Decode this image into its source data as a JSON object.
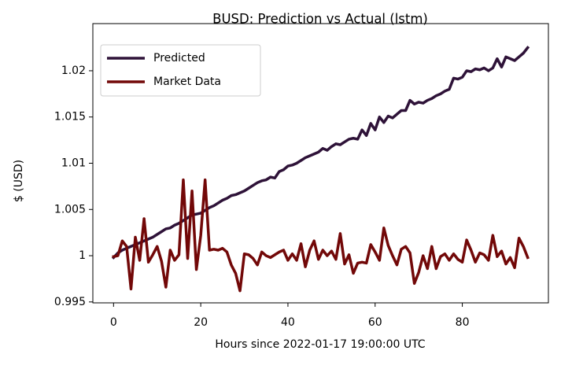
{
  "chart_data": {
    "type": "line",
    "title": "BUSD: Prediction vs Actual (lstm)",
    "x_label": "Hours since 2022-01-17 19:00:00 UTC",
    "y_label": "$ (USD)",
    "x": [
      0,
      1,
      2,
      3,
      4,
      5,
      6,
      7,
      8,
      9,
      10,
      11,
      12,
      13,
      14,
      15,
      16,
      17,
      18,
      19,
      20,
      21,
      22,
      23,
      24,
      25,
      26,
      27,
      28,
      29,
      30,
      31,
      32,
      33,
      34,
      35,
      36,
      37,
      38,
      39,
      40,
      41,
      42,
      43,
      44,
      45,
      46,
      47,
      48,
      49,
      50,
      51,
      52,
      53,
      54,
      55,
      56,
      57,
      58,
      59,
      60,
      61,
      62,
      63,
      64,
      65,
      66,
      67,
      68,
      69,
      70,
      71,
      72,
      73,
      74,
      75,
      76,
      77,
      78,
      79,
      80,
      81,
      82,
      83,
      84,
      85,
      86,
      87,
      88,
      89,
      90,
      91,
      92,
      93,
      94,
      95
    ],
    "series": [
      {
        "name": "Predicted",
        "color": "#2e1238",
        "values": [
          0.9998,
          1.0003,
          1.0006,
          1.0008,
          1.001,
          1.0012,
          1.0014,
          1.0016,
          1.0018,
          1.002,
          1.0023,
          1.0026,
          1.0029,
          1.003,
          1.0033,
          1.0035,
          1.0038,
          1.0041,
          1.0044,
          1.0045,
          1.0046,
          1.0049,
          1.0052,
          1.0054,
          1.0057,
          1.006,
          1.0062,
          1.0065,
          1.0066,
          1.0068,
          1.007,
          1.0073,
          1.0076,
          1.0079,
          1.0081,
          1.0082,
          1.0085,
          1.0084,
          1.0091,
          1.0093,
          1.0097,
          1.0098,
          1.01,
          1.0103,
          1.0106,
          1.0108,
          1.011,
          1.0112,
          1.0116,
          1.0114,
          1.0118,
          1.0121,
          1.012,
          1.0123,
          1.0126,
          1.0127,
          1.0126,
          1.0136,
          1.013,
          1.0143,
          1.0136,
          1.015,
          1.0144,
          1.0151,
          1.0149,
          1.0153,
          1.0157,
          1.0157,
          1.0168,
          1.0164,
          1.0166,
          1.0165,
          1.0168,
          1.017,
          1.0173,
          1.0175,
          1.0178,
          1.018,
          1.0192,
          1.0191,
          1.0193,
          1.02,
          1.0199,
          1.0202,
          1.0201,
          1.0203,
          1.02,
          1.0203,
          1.0213,
          1.0204,
          1.0215,
          1.0213,
          1.0211,
          1.0215,
          1.0219,
          1.0225
        ]
      },
      {
        "name": "Market Data",
        "color": "#720808",
        "values": [
          0.9999,
          1.0,
          1.0016,
          1.001,
          0.9964,
          1.002,
          0.9995,
          1.004,
          0.9993,
          1.0001,
          1.001,
          0.9994,
          0.9966,
          1.0006,
          0.9995,
          1.0001,
          1.0082,
          0.9997,
          1.007,
          0.9985,
          1.0022,
          1.0082,
          1.0006,
          1.0007,
          1.0006,
          1.0008,
          1.0004,
          0.999,
          0.9981,
          0.9962,
          1.0002,
          1.0001,
          0.9997,
          0.999,
          1.0004,
          1.0,
          0.9998,
          1.0001,
          1.0004,
          1.0006,
          0.9995,
          1.0002,
          0.9995,
          1.0013,
          0.9988,
          1.0006,
          1.0016,
          0.9996,
          1.0006,
          1.0,
          1.0005,
          0.9996,
          1.0024,
          0.9991,
          1.0001,
          0.9981,
          0.9992,
          0.9993,
          0.9992,
          1.0012,
          1.0004,
          0.9995,
          1.003,
          1.0011,
          1.0,
          0.999,
          1.0007,
          1.001,
          1.0003,
          0.997,
          0.9982,
          1.0,
          0.9986,
          1.001,
          0.9986,
          0.9999,
          1.0002,
          0.9995,
          1.0002,
          0.9996,
          0.9993,
          1.0017,
          1.0006,
          0.9993,
          1.0003,
          1.0001,
          0.9995,
          1.0022,
          0.9999,
          1.0005,
          0.9991,
          0.9998,
          0.9987,
          1.0019,
          1.001,
          0.9998
        ]
      }
    ],
    "xlim": [
      -4.75,
      99.75
    ],
    "ylim": [
      0.9949,
      1.0251
    ],
    "xticks": [
      0,
      20,
      40,
      60,
      80
    ],
    "yticks": [
      0.995,
      1,
      1.005,
      1.01,
      1.015,
      1.02
    ],
    "legend": "upper left"
  }
}
